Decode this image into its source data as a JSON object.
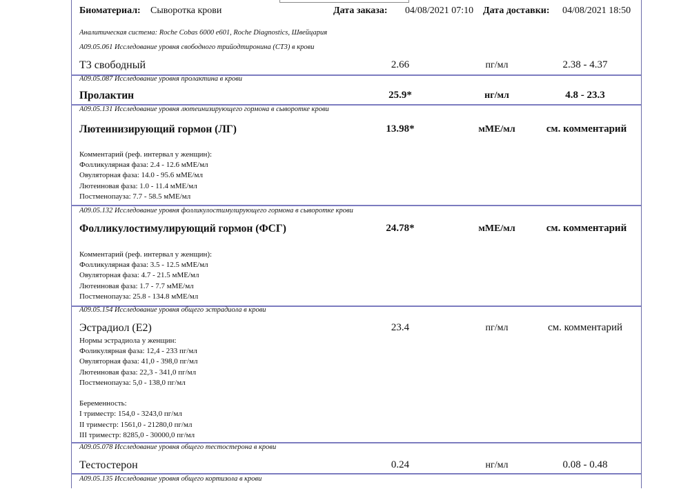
{
  "header": {
    "biomaterial_label": "Биоматериал:",
    "biomaterial_value": "Сыворотка крови",
    "order_date_label": "Дата заказа:",
    "order_date_value": "04/08/2021 07:10",
    "delivery_date_label": "Дата доставки:",
    "delivery_date_value": "04/08/2021 18:50"
  },
  "analytic_system": "Аналитическая система: Roche Cobas 6000 e601, Roche Diagnostics, Швейцария",
  "sections": [
    {
      "code": "A09.05.061 Исследование уровня свободного трийодтиронина (СТ3) в крови",
      "name": "Т3 свободный",
      "value": "2.66",
      "unit": "пг/мл",
      "ref": "2.38 - 4.37",
      "bold": false,
      "comments": []
    },
    {
      "code": "A09.05.087 Исследование уровня пролактина в крови",
      "name": "Пролактин",
      "value": "25.9*",
      "unit": "нг/мл",
      "ref": "4.8 - 23.3",
      "bold": true,
      "comments": []
    },
    {
      "code": "A09.05.131 Исследование уровня лютеинизирующего гормона в сыворотке крови",
      "name": "Лютеинизирующий гормон (ЛГ)",
      "value": "13.98*",
      "unit": "мМЕ/мл",
      "ref": "см. комментарий",
      "bold": true,
      "comments": [
        "Комментарий (реф. интервал у женщин):",
        "Фолликулярная фаза: 2.4 - 12.6 мМЕ/мл",
        "Овуляторная фаза: 14.0 - 95.6 мМЕ/мл",
        "Лютеиновая фаза: 1.0 - 11.4 мМЕ/мл",
        "Постменопауза: 7.7 - 58.5 мМЕ/мл"
      ]
    },
    {
      "code": "A09.05.132 Исследование уровня фолликулостимулирующего гормона в сыворотке крови",
      "name": "Фолликулостимулирующий гормон (ФСГ)",
      "value": "24.78*",
      "unit": "мМЕ/мл",
      "ref": "см. комментарий",
      "bold": true,
      "comments": [
        "Комментарий (реф. интервал у женщин):",
        "Фолликулярная фаза: 3.5 - 12.5 мМЕ/мл",
        "Овуляторная фаза: 4.7 - 21.5 мМЕ/мл",
        "Лютеиновая фаза: 1.7 - 7.7 мМЕ/мл",
        "Постменопауза: 25.8 - 134.8 мМЕ/мл"
      ]
    },
    {
      "code": "A09.05.154 Исследование уровня общего эстрадиола в крови",
      "name": "Эстрадиол (Е2)",
      "value": "23.4",
      "unit": "пг/мл",
      "ref": "см. комментарий",
      "bold": false,
      "comments": [
        "Нормы эстрадиола у женщин:",
        "Фоликулярная фаза: 12,4 - 233 пг/мл",
        "Овуляторная фаза: 41,0 - 398,0 пг/мл",
        "Лютеиновая фаза: 22,3 - 341,0 пг/мл",
        "Постменопауза: 5,0 - 138,0 пг/мл",
        "",
        "Беременность:",
        "I триместр: 154,0 - 3243,0 пг/мл",
        "II триместр: 1561,0 - 21280,0 пг/мл",
        "III триместр: 8285,0 - 30000,0 пг/мл"
      ]
    },
    {
      "code": "A09.05.078 Исследование уровня общего тестостерона в крови",
      "name": "Тестостерон",
      "value": "0.24",
      "unit": "нг/мл",
      "ref": "0.08 - 0.48",
      "bold": false,
      "comments": []
    },
    {
      "code": "A09.05.135 Исследование уровня общего кортизола в крови",
      "name": "",
      "value": "",
      "unit": "",
      "ref": "",
      "bold": false,
      "comments": []
    }
  ]
}
